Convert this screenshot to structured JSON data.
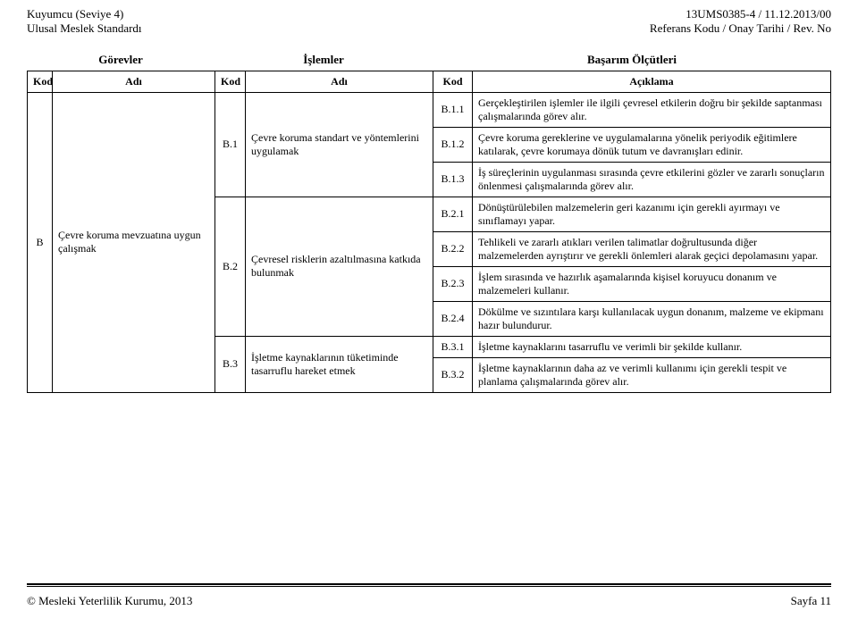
{
  "header": {
    "left1": "Kuyumcu (Seviye 4)",
    "left2": "Ulusal Meslek Standardı",
    "right1": "13UMS0385-4 / 11.12.2013/00",
    "right2": "Referans Kodu / Onay Tarihi / Rev. No"
  },
  "sections": {
    "gorevler": "Görevler",
    "islemler": "İşlemler",
    "basarim": "Başarım Ölçütleri"
  },
  "cols": {
    "kod": "Kod",
    "adi": "Adı",
    "aciklama": "Açıklama"
  },
  "task": {
    "kod": "B",
    "adi": "Çevre koruma mevzuatına uygun çalışmak"
  },
  "ops": [
    {
      "kod": "B.1",
      "adi": "Çevre koruma standart ve yöntemlerini uygulamak"
    },
    {
      "kod": "B.2",
      "adi": "Çevresel risklerin azaltılmasına katkıda bulunmak"
    },
    {
      "kod": "B.3",
      "adi": "İşletme kaynaklarının tüketiminde tasarruflu hareket etmek"
    }
  ],
  "crit": [
    {
      "kod": "B.1.1",
      "txt": "Gerçekleştirilen işlemler ile ilgili çevresel etkilerin doğru bir şekilde saptanması çalışmalarında görev alır."
    },
    {
      "kod": "B.1.2",
      "txt": "Çevre koruma gereklerine ve uygulamalarına yönelik periyodik eğitimlere katılarak, çevre korumaya dönük tutum ve davranışları edinir."
    },
    {
      "kod": "B.1.3",
      "txt": "İş süreçlerinin uygulanması sırasında çevre etkilerini gözler ve zararlı sonuçların önlenmesi çalışmalarında görev alır."
    },
    {
      "kod": "B.2.1",
      "txt": "Dönüştürülebilen malzemelerin geri kazanımı için gerekli ayırmayı ve sınıflamayı yapar."
    },
    {
      "kod": "B.2.2",
      "txt": "Tehlikeli ve zararlı atıkları verilen talimatlar doğrultusunda diğer malzemelerden ayrıştırır ve gerekli önlemleri alarak geçici depolamasını yapar."
    },
    {
      "kod": "B.2.3",
      "txt": "İşlem sırasında ve hazırlık aşamalarında kişisel koruyucu donanım ve malzemeleri kullanır."
    },
    {
      "kod": "B.2.4",
      "txt": "Dökülme ve sızıntılara karşı kullanılacak uygun donanım, malzeme ve ekipmanı hazır bulundurur."
    },
    {
      "kod": "B.3.1",
      "txt": "İşletme kaynaklarını tasarruflu ve verimli bir şekilde kullanır."
    },
    {
      "kod": "B.3.2",
      "txt": "İşletme kaynaklarının daha az ve verimli kullanımı için gerekli tespit ve planlama çalışmalarında görev alır."
    }
  ],
  "footer": {
    "left": "© Mesleki Yeterlilik Kurumu, 2013",
    "right": "Sayfa 11"
  }
}
